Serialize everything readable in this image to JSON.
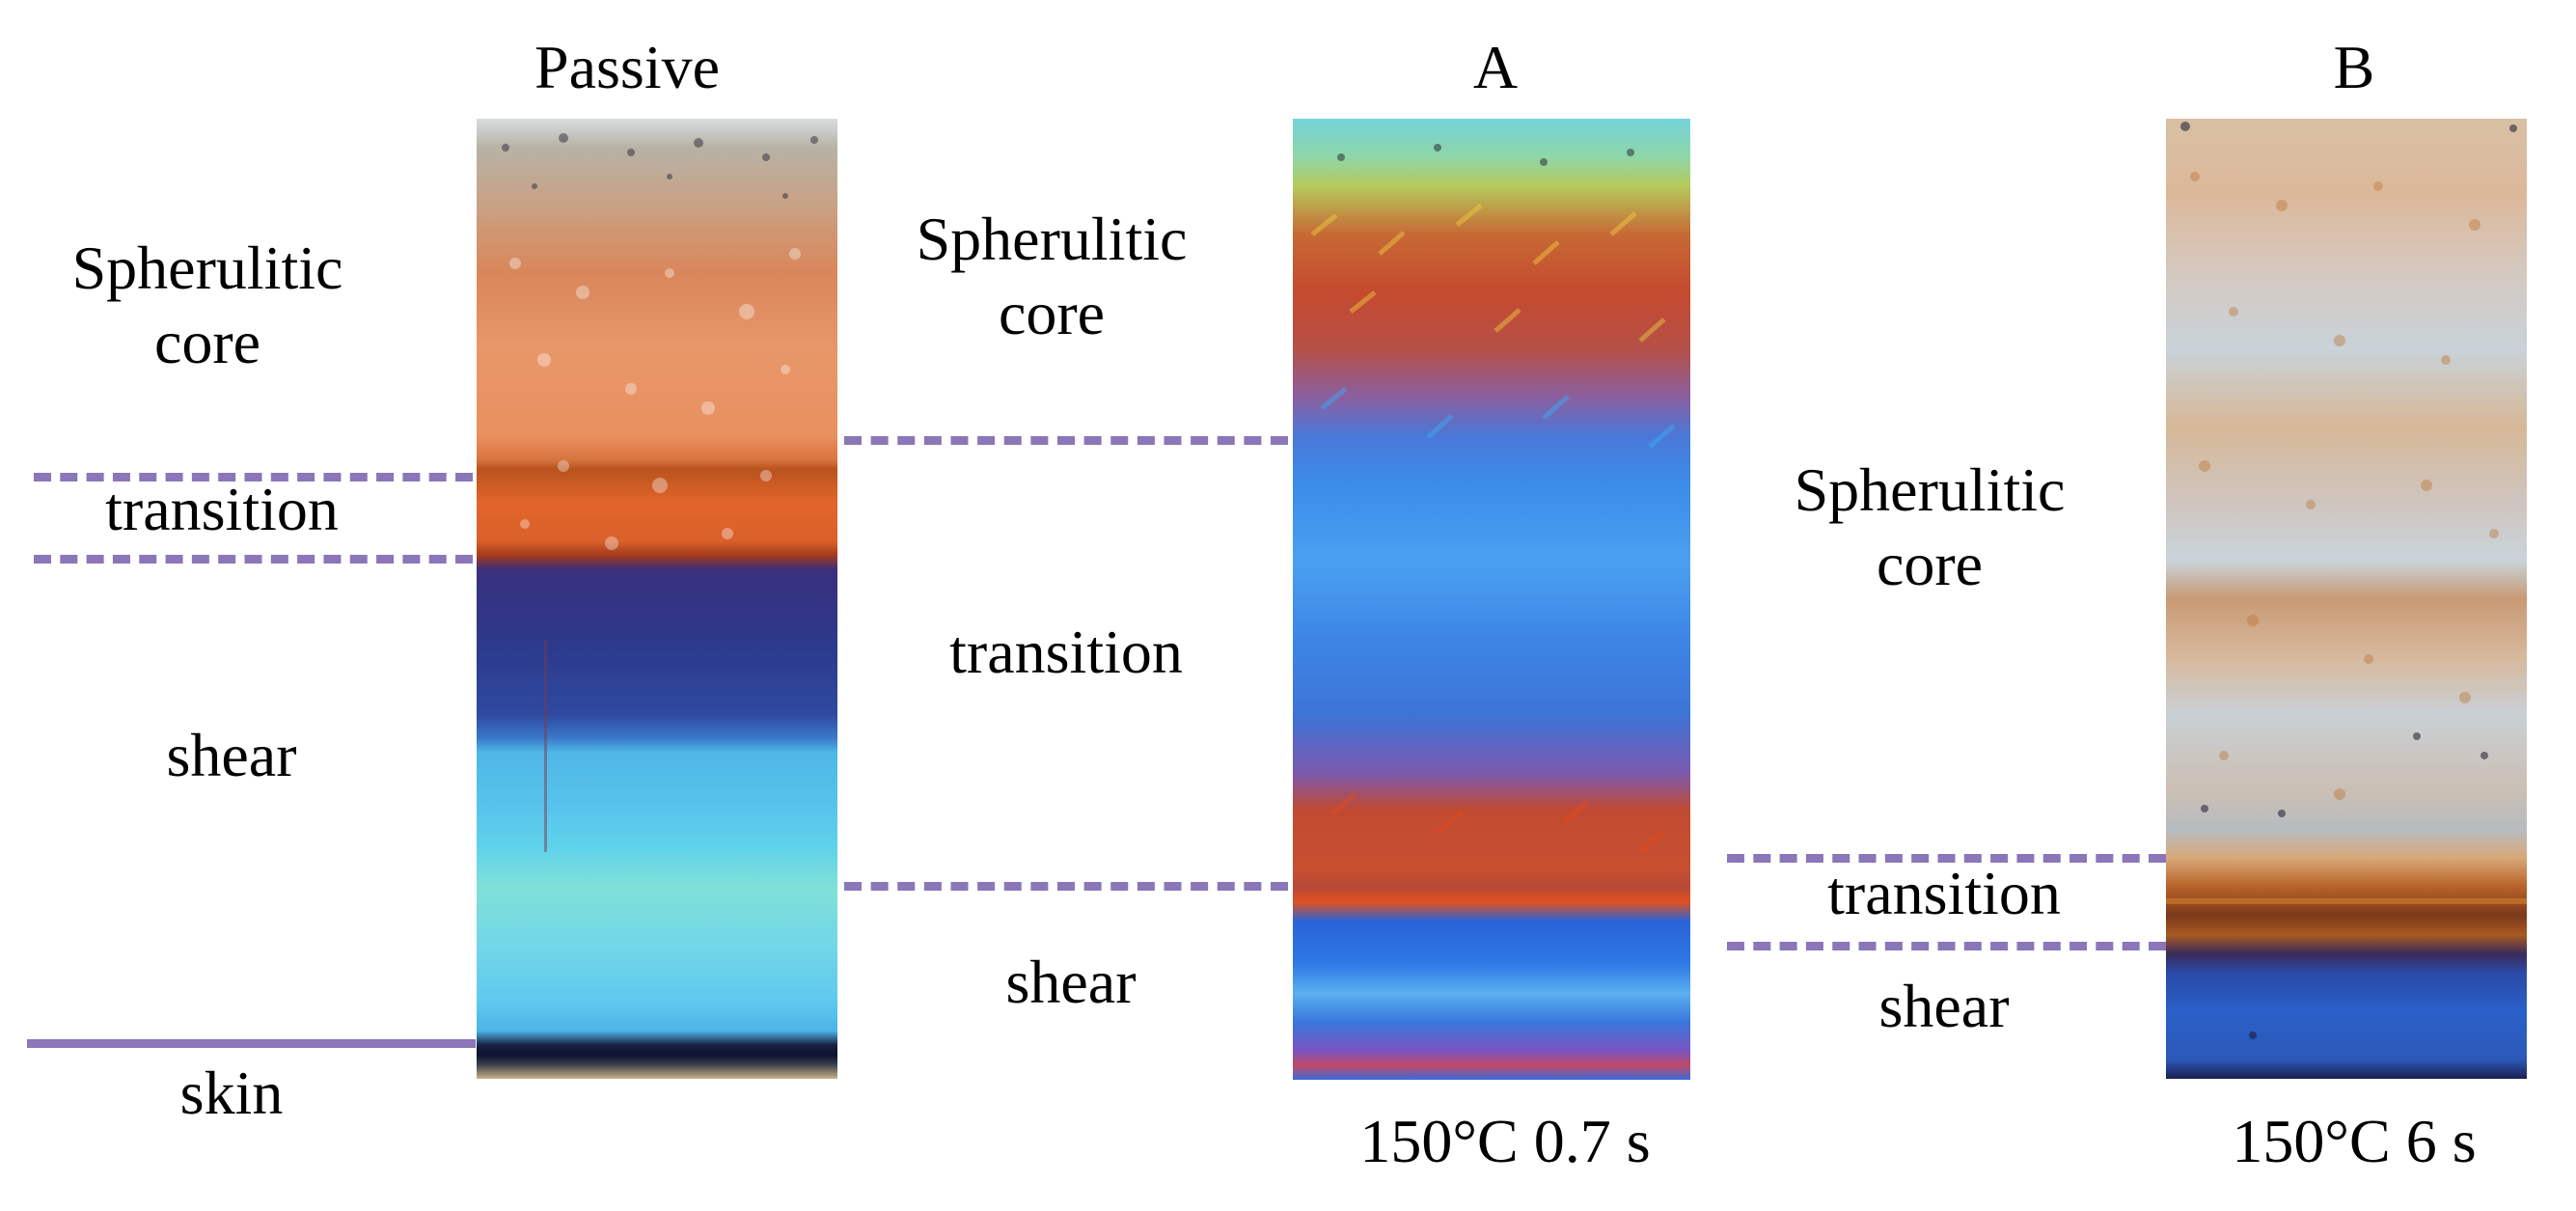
{
  "panels": {
    "passive": {
      "title": "Passive",
      "label_spherulitic_line1": "Spherulitic",
      "label_spherulitic_line2": "core",
      "label_transition": "transition",
      "label_shear": "shear",
      "label_skin": "skin"
    },
    "a": {
      "title": "A",
      "label_spherulitic_line1": "Spherulitic",
      "label_spherulitic_line2": "core",
      "label_transition": "transition",
      "label_shear": "shear",
      "condition": "150°C 0.7 s"
    },
    "b": {
      "title": "B",
      "label_spherulitic_line1": "Spherulitic",
      "label_spherulitic_line2": "core",
      "label_transition": "transition",
      "label_shear": "shear",
      "condition": "150°C 6 s"
    }
  },
  "colors": {
    "boundary_line": "#8a76b8"
  }
}
